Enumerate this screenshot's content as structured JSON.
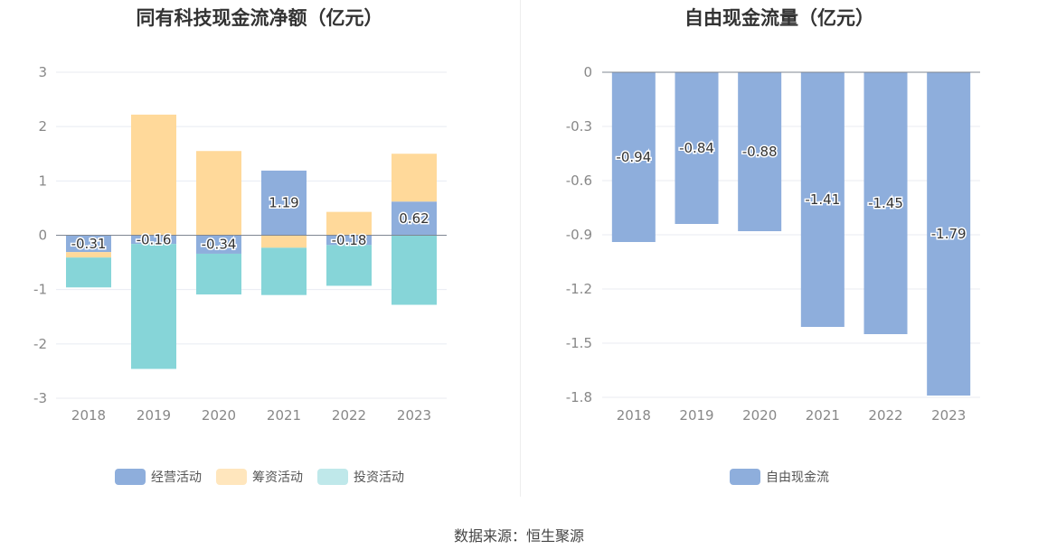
{
  "source_text": "数据来源：恒生聚源",
  "chart_data": [
    {
      "type": "bar",
      "stacked": true,
      "title": "同有科技现金流净额（亿元）",
      "categories": [
        "2018",
        "2019",
        "2020",
        "2021",
        "2022",
        "2023"
      ],
      "ylim": [
        -3,
        3
      ],
      "yticks": [
        "3",
        "2",
        "1",
        "0",
        "-1",
        "-2",
        "-3"
      ],
      "grid": true,
      "legend_position": "bottom",
      "series": [
        {
          "name": "经营活动",
          "color": "#8eaedc",
          "values": [
            -0.31,
            -0.16,
            -0.34,
            1.19,
            -0.18,
            0.62
          ]
        },
        {
          "name": "筹资活动",
          "color": "#ffd99a",
          "values": [
            -0.1,
            2.22,
            1.55,
            -0.23,
            0.43,
            0.88
          ]
        },
        {
          "name": "投资活动",
          "color": "#86d5d8",
          "values": [
            -0.55,
            -2.3,
            -0.75,
            -0.87,
            -0.75,
            -1.28
          ]
        }
      ],
      "data_labels": [
        "-0.31",
        "-0.16",
        "-0.34",
        "1.19",
        "-0.18",
        "0.62"
      ]
    },
    {
      "type": "bar",
      "title": "自由现金流量（亿元）",
      "categories": [
        "2018",
        "2019",
        "2020",
        "2021",
        "2022",
        "2023"
      ],
      "ylim": [
        -1.8,
        0
      ],
      "yticks": [
        "0",
        "-0.3",
        "-0.6",
        "-0.9",
        "-1.2",
        "-1.5",
        "-1.8"
      ],
      "grid": true,
      "legend_position": "bottom",
      "series": [
        {
          "name": "自由现金流",
          "color": "#8eaedc",
          "values": [
            -0.94,
            -0.84,
            -0.88,
            -1.41,
            -1.45,
            -1.79
          ]
        }
      ],
      "data_labels": [
        "-0.94",
        "-0.84",
        "-0.88",
        "-1.41",
        "-1.45",
        "-1.79"
      ]
    }
  ]
}
